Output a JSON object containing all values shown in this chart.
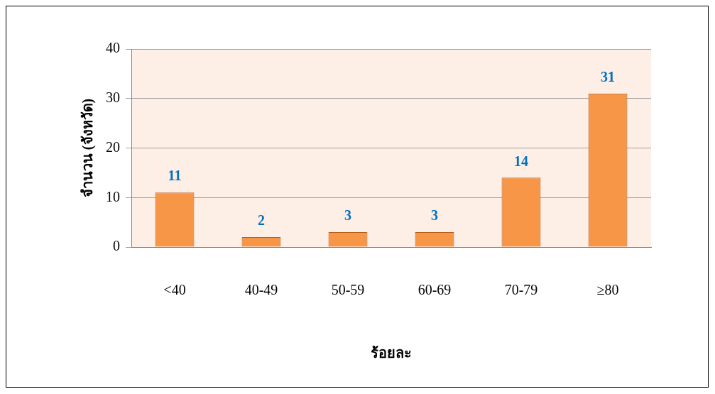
{
  "chart_data": {
    "type": "bar",
    "xlabel": "ร้อยละ",
    "ylabel": "จำนวน (จังหวัด)",
    "categories": [
      "<40",
      "40-49",
      "50-59",
      "60-69",
      "70-79",
      "≥80"
    ],
    "values": [
      11,
      2,
      3,
      3,
      14,
      31
    ],
    "color": "#f79646",
    "ylim": [
      0,
      40
    ],
    "yticks": [
      0,
      10,
      20,
      30,
      40
    ],
    "grid": "y",
    "legend": false,
    "data_labels": true
  }
}
